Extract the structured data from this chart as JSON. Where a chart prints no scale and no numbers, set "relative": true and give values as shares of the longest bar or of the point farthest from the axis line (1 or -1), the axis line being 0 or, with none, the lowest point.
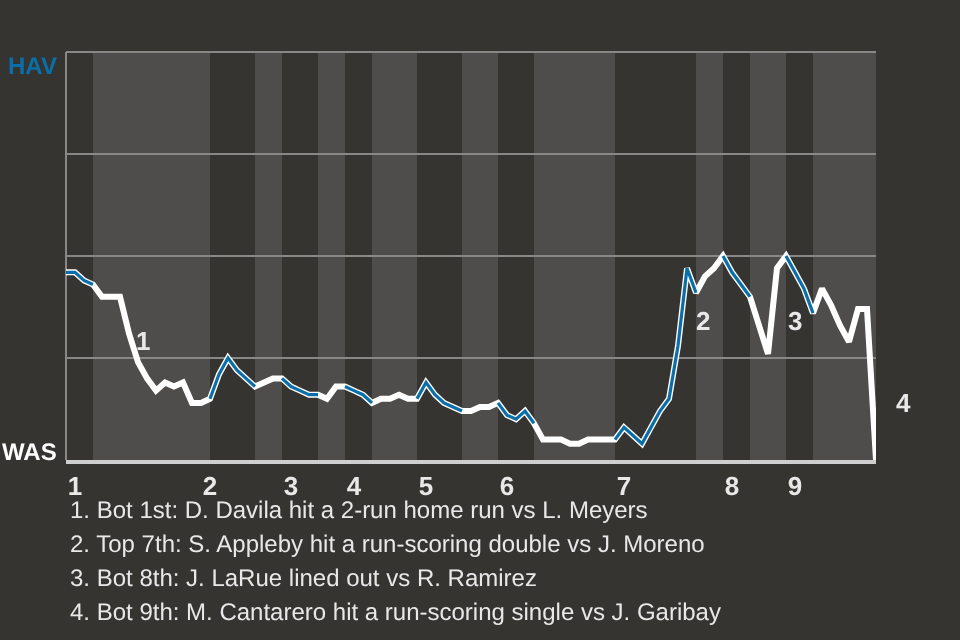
{
  "chart_data": {
    "type": "line",
    "relative": true,
    "categories": [
      null,
      "1",
      null,
      null,
      null,
      null,
      null,
      null,
      null,
      null,
      null,
      null,
      null,
      null,
      null,
      null,
      "2",
      null,
      null,
      null,
      null,
      null,
      null,
      null,
      null,
      "3",
      null,
      null,
      null,
      null,
      null,
      null,
      "4",
      null,
      null,
      null,
      null,
      null,
      null,
      null,
      "5",
      null,
      null,
      null,
      null,
      null,
      null,
      null,
      null,
      "6",
      null,
      null,
      null,
      null,
      null,
      null,
      null,
      null,
      null,
      null,
      null,
      null,
      "7",
      null,
      null,
      null,
      null,
      null,
      null,
      null,
      null,
      null,
      null,
      null,
      "8",
      null,
      null,
      null,
      null,
      null,
      null,
      "9",
      null,
      null,
      null,
      null,
      null,
      null,
      null,
      null,
      null
    ],
    "ref_lines": [
      {
        "axis": "y",
        "value": 0.5,
        "color": "#8a8886"
      },
      {
        "axis": "y",
        "value": 1,
        "color": "#8a8886"
      },
      {
        "axis": "y",
        "value": 1.5,
        "color": "#8a8886"
      }
    ],
    "marker": "none",
    "line_style": "solid",
    "series": [
      {
        "color": "#ffffff",
        "values": [
          0.92,
          0.92,
          0.88,
          0.86,
          0.8,
          0.8,
          0.8,
          0.62,
          0.48,
          0.4,
          0.34,
          0.38,
          0.36,
          0.38,
          0.28,
          0.28,
          0.3,
          0.42,
          0.5,
          0.44,
          0.4,
          0.36,
          0.38,
          0.4,
          0.4,
          0.36,
          0.34,
          0.32,
          0.32,
          0.3,
          0.36,
          0.36,
          0.34,
          0.32,
          0.28,
          0.3,
          0.3,
          0.32,
          0.3,
          0.3,
          0.38,
          0.32,
          0.28,
          0.26,
          0.24,
          0.24,
          0.26,
          0.26,
          0.28,
          0.22,
          0.2,
          0.24,
          0.18,
          0.1,
          0.1,
          0.1,
          0.08,
          0.08,
          0.1,
          0.1,
          0.1,
          0.1,
          0.16,
          0.12,
          0.08,
          0.16,
          0.24,
          0.3,
          0.56,
          0.94,
          0.82,
          0.9,
          0.94,
          1,
          0.92,
          0.86,
          0.8,
          0.66,
          0.52,
          0.94,
          1,
          0.92,
          0.84,
          0.72,
          0.84,
          0.76,
          0.66,
          0.58,
          0.74,
          0.74,
          0
        ]
      },
      {
        "color": "#0a6ea8",
        "values": [
          0.92,
          0.92,
          0.88,
          0.86,
          null,
          null,
          null,
          null,
          null,
          null,
          null,
          null,
          null,
          null,
          null,
          null,
          0.3,
          0.42,
          0.5,
          0.44,
          0.4,
          0.36,
          null,
          null,
          0.4,
          0.36,
          0.34,
          0.32,
          0.32,
          null,
          null,
          0.36,
          0.34,
          0.32,
          0.28,
          null,
          null,
          null,
          null,
          0.3,
          0.38,
          0.32,
          0.28,
          0.26,
          0.24,
          null,
          null,
          null,
          0.28,
          0.22,
          0.2,
          0.24,
          0.18,
          null,
          null,
          null,
          null,
          null,
          null,
          null,
          null,
          0.1,
          0.16,
          0.12,
          0.08,
          0.16,
          0.24,
          0.3,
          0.56,
          0.94,
          0.82,
          null,
          null,
          1,
          0.92,
          0.86,
          0.8,
          null,
          null,
          null,
          1,
          0.92,
          0.84,
          0.72,
          null,
          null,
          null,
          null,
          null,
          null,
          null
        ]
      }
    ],
    "annotations": [
      "HAV",
      "WAS",
      "1",
      "2",
      "3",
      "4",
      "1. Bot 1st: D. Davila hit a 2-run home run vs L. Meyers",
      "2. Top 7th: S. Appleby hit a run-scoring double vs J. Moreno",
      "3. Bot 8th: J. LaRue lined out vs R. Ramirez",
      "4. Bot 9th: M. Cantarero hit a run-scoring single vs J. Garibay"
    ]
  }
}
